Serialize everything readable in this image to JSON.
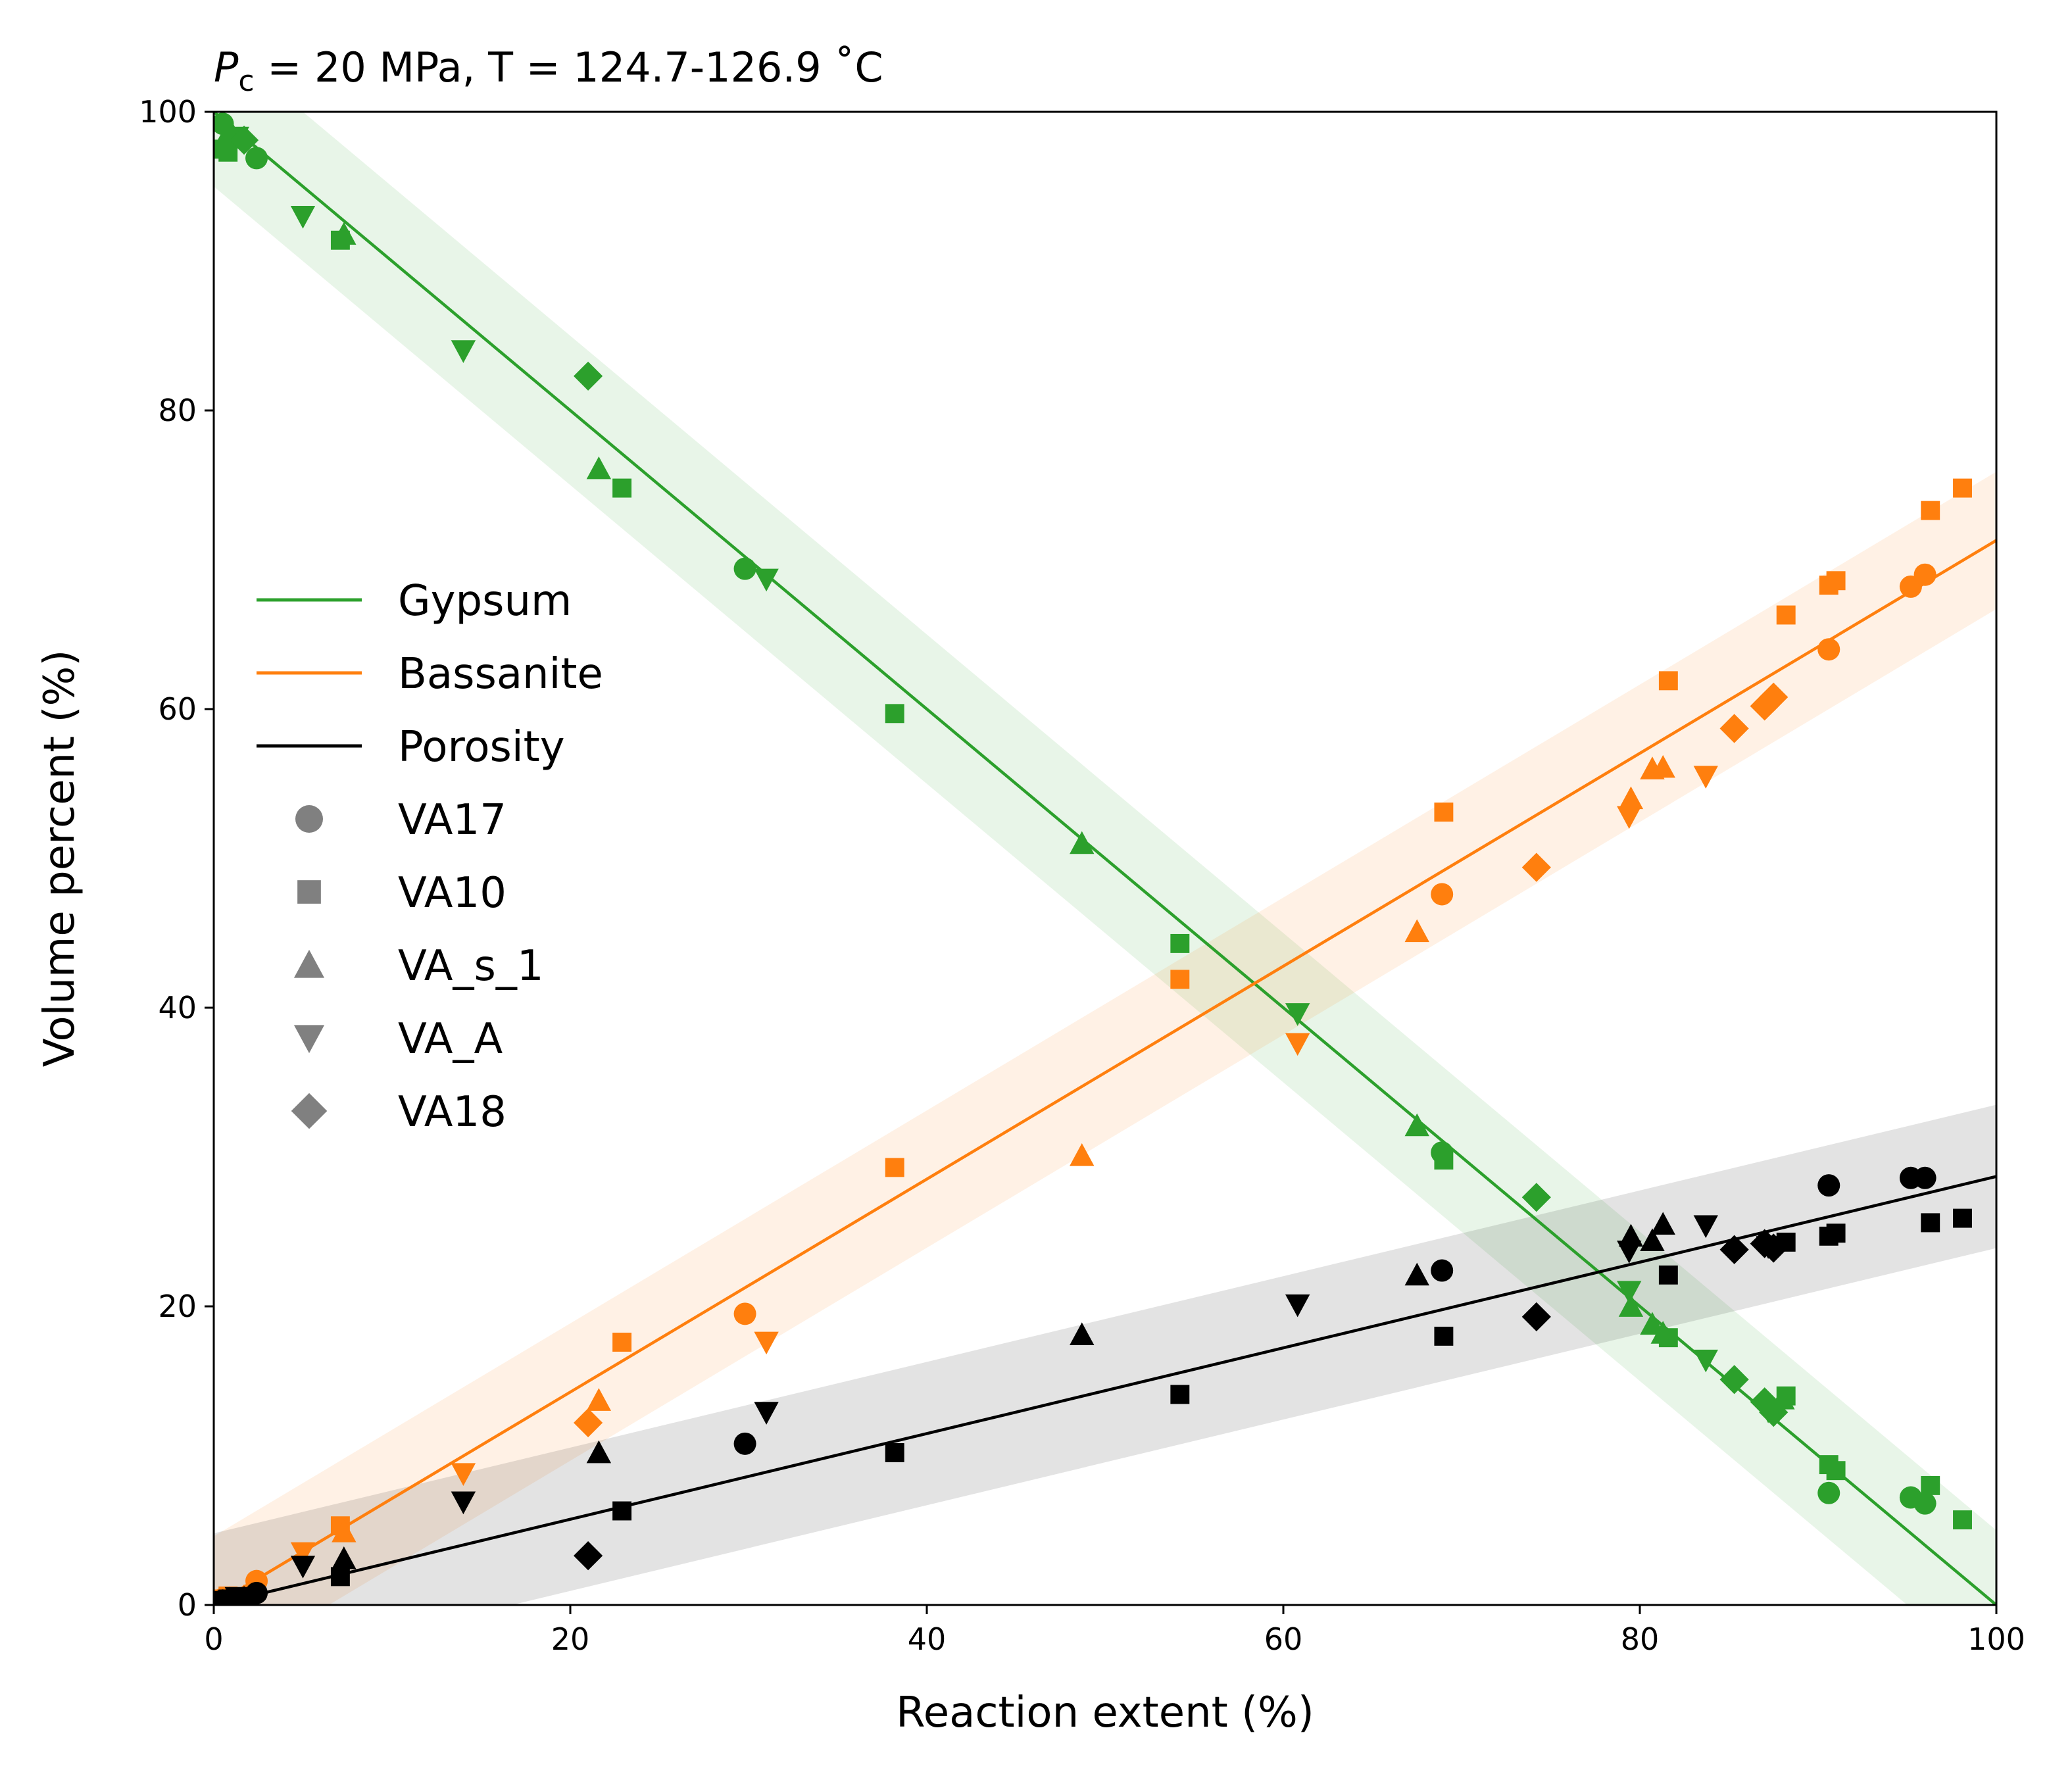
{
  "chart_data": {
    "type": "scatter",
    "title": "P_c = 20 MPa, T = 124.7-126.9 ˚C",
    "title_parts": {
      "sym": "P",
      "sub": "c",
      "rest": " = 20 MPa, T = 124.7-126.9 ˚C"
    },
    "xlabel": "Reaction extent (%)",
    "ylabel": "Volume percent (%)",
    "xlim": [
      0,
      100
    ],
    "ylim": [
      0,
      100
    ],
    "xticks": [
      "0",
      "20",
      "40",
      "60",
      "80",
      "100"
    ],
    "yticks": [
      "0",
      "20",
      "40",
      "60",
      "80",
      "100"
    ],
    "grid": false,
    "legend_position": "center-left",
    "phases": [
      {
        "name": "Gypsum",
        "color": "#2ca02c",
        "fit": [
          [
            0,
            100
          ],
          [
            100,
            0
          ]
        ],
        "band_halfwidth": 5
      },
      {
        "name": "Bassanite",
        "color": "#ff7f0e",
        "fit": [
          [
            0,
            0
          ],
          [
            100,
            71.3
          ]
        ],
        "band_halfwidth": 4.6
      },
      {
        "name": "Porosity",
        "color": "#000000",
        "fit": [
          [
            0,
            0
          ],
          [
            100,
            28.7
          ]
        ],
        "band_halfwidth": 4.8
      }
    ],
    "experiments": [
      {
        "name": "VA17",
        "marker": "circle"
      },
      {
        "name": "VA10",
        "marker": "square"
      },
      {
        "name": "VA_s_1",
        "marker": "triangle-up"
      },
      {
        "name": "VA_A",
        "marker": "triangle-down"
      },
      {
        "name": "VA18",
        "marker": "diamond"
      }
    ],
    "legend_marker_color": "#808080",
    "series": [
      {
        "phase": "Gypsum",
        "experiment": "VA17",
        "points": [
          [
            0.5,
            99.2
          ],
          [
            2.4,
            96.9
          ],
          [
            29.8,
            69.4
          ],
          [
            68.9,
            30.3
          ],
          [
            90.6,
            7.5
          ],
          [
            95.2,
            7.2
          ],
          [
            96.0,
            6.8
          ]
        ]
      },
      {
        "phase": "Gypsum",
        "experiment": "VA10",
        "points": [
          [
            0.5,
            97.5
          ],
          [
            0.8,
            97.3
          ],
          [
            7.1,
            91.4
          ],
          [
            22.9,
            74.8
          ],
          [
            38.2,
            59.7
          ],
          [
            54.2,
            44.3
          ],
          [
            69.0,
            29.8
          ],
          [
            81.6,
            17.9
          ],
          [
            88.2,
            14.0
          ],
          [
            90.6,
            9.4
          ],
          [
            91.0,
            9.0
          ],
          [
            96.3,
            8.0
          ],
          [
            98.1,
            5.7
          ]
        ]
      },
      {
        "phase": "Gypsum",
        "experiment": "VA_s_1",
        "points": [
          [
            0.9,
            98.8
          ],
          [
            7.3,
            91.8
          ],
          [
            21.6,
            76.1
          ],
          [
            48.7,
            51.0
          ],
          [
            67.5,
            32.1
          ],
          [
            79.5,
            20.0
          ],
          [
            80.7,
            18.8
          ],
          [
            81.3,
            18.2
          ],
          [
            88.0,
            13.8
          ]
        ]
      },
      {
        "phase": "Gypsum",
        "experiment": "VA_A",
        "points": [
          [
            1.3,
            98.3
          ],
          [
            5.0,
            93.0
          ],
          [
            14.0,
            84.0
          ],
          [
            31.0,
            68.7
          ],
          [
            60.8,
            39.6
          ],
          [
            79.4,
            21.0
          ],
          [
            83.7,
            16.4
          ],
          [
            87.2,
            13.0
          ]
        ]
      },
      {
        "phase": "Gypsum",
        "experiment": "VA18",
        "points": [
          [
            1.7,
            98.1
          ],
          [
            21.0,
            82.3
          ],
          [
            74.2,
            27.3
          ],
          [
            85.3,
            15.1
          ],
          [
            87.0,
            13.6
          ],
          [
            87.5,
            12.9
          ]
        ]
      },
      {
        "phase": "Bassanite",
        "experiment": "VA17",
        "points": [
          [
            0.5,
            0.4
          ],
          [
            2.4,
            1.6
          ],
          [
            29.8,
            19.5
          ],
          [
            68.9,
            47.6
          ],
          [
            90.6,
            64.0
          ],
          [
            95.2,
            68.2
          ],
          [
            96.0,
            69.0
          ]
        ]
      },
      {
        "phase": "Bassanite",
        "experiment": "VA10",
        "points": [
          [
            0.5,
            0.4
          ],
          [
            0.8,
            0.6
          ],
          [
            7.1,
            5.3
          ],
          [
            22.9,
            17.6
          ],
          [
            38.2,
            29.3
          ],
          [
            54.2,
            41.9
          ],
          [
            69.0,
            53.1
          ],
          [
            81.6,
            61.9
          ],
          [
            88.2,
            66.3
          ],
          [
            90.6,
            68.3
          ],
          [
            91.0,
            68.6
          ],
          [
            96.3,
            73.3
          ],
          [
            98.1,
            74.8
          ]
        ]
      },
      {
        "phase": "Bassanite",
        "experiment": "VA_s_1",
        "points": [
          [
            0.9,
            0.4
          ],
          [
            7.3,
            4.9
          ],
          [
            21.6,
            13.7
          ],
          [
            48.7,
            30.1
          ],
          [
            67.5,
            45.1
          ],
          [
            79.5,
            54.0
          ],
          [
            80.7,
            56.0
          ],
          [
            81.3,
            56.1
          ]
        ]
      },
      {
        "phase": "Bassanite",
        "experiment": "VA_A",
        "points": [
          [
            1.3,
            0.5
          ],
          [
            5.0,
            3.5
          ],
          [
            14.0,
            8.8
          ],
          [
            31.0,
            17.6
          ],
          [
            60.8,
            37.6
          ],
          [
            79.4,
            52.8
          ],
          [
            83.7,
            55.5
          ]
        ]
      },
      {
        "phase": "Bassanite",
        "experiment": "VA18",
        "points": [
          [
            1.7,
            0.4
          ],
          [
            21.0,
            12.2
          ],
          [
            74.2,
            49.4
          ],
          [
            85.3,
            58.7
          ],
          [
            87.0,
            60.2
          ],
          [
            87.5,
            60.8
          ]
        ]
      },
      {
        "phase": "Porosity",
        "experiment": "VA17",
        "points": [
          [
            0.5,
            0.3
          ],
          [
            2.4,
            0.8
          ],
          [
            29.8,
            10.8
          ],
          [
            68.9,
            22.4
          ],
          [
            90.6,
            28.1
          ],
          [
            95.2,
            28.6
          ],
          [
            96.0,
            28.6
          ]
        ]
      },
      {
        "phase": "Porosity",
        "experiment": "VA10",
        "points": [
          [
            0.5,
            0.3
          ],
          [
            0.8,
            0.4
          ],
          [
            7.1,
            1.9
          ],
          [
            22.9,
            6.3
          ],
          [
            38.2,
            10.2
          ],
          [
            54.2,
            14.1
          ],
          [
            69.0,
            18.0
          ],
          [
            81.6,
            22.1
          ],
          [
            88.2,
            24.3
          ],
          [
            90.6,
            24.7
          ],
          [
            91.0,
            24.9
          ],
          [
            96.3,
            25.6
          ],
          [
            98.1,
            25.9
          ]
        ]
      },
      {
        "phase": "Porosity",
        "experiment": "VA_s_1",
        "points": [
          [
            0.9,
            0.4
          ],
          [
            7.3,
            3.1
          ],
          [
            21.6,
            10.2
          ],
          [
            48.7,
            18.1
          ],
          [
            67.5,
            22.1
          ],
          [
            79.5,
            24.7
          ],
          [
            80.7,
            24.4
          ],
          [
            81.3,
            25.5
          ]
        ]
      },
      {
        "phase": "Porosity",
        "experiment": "VA_A",
        "points": [
          [
            1.3,
            0.5
          ],
          [
            5.0,
            2.6
          ],
          [
            14.0,
            6.9
          ],
          [
            31.0,
            12.9
          ],
          [
            60.8,
            20.1
          ],
          [
            79.4,
            23.7
          ],
          [
            83.7,
            25.4
          ],
          [
            87.2,
            24.0
          ]
        ]
      },
      {
        "phase": "Porosity",
        "experiment": "VA18",
        "points": [
          [
            1.7,
            0.3
          ],
          [
            21.0,
            3.3
          ],
          [
            74.2,
            19.3
          ],
          [
            85.3,
            23.8
          ],
          [
            87.0,
            24.2
          ],
          [
            87.5,
            23.9
          ]
        ]
      }
    ]
  }
}
